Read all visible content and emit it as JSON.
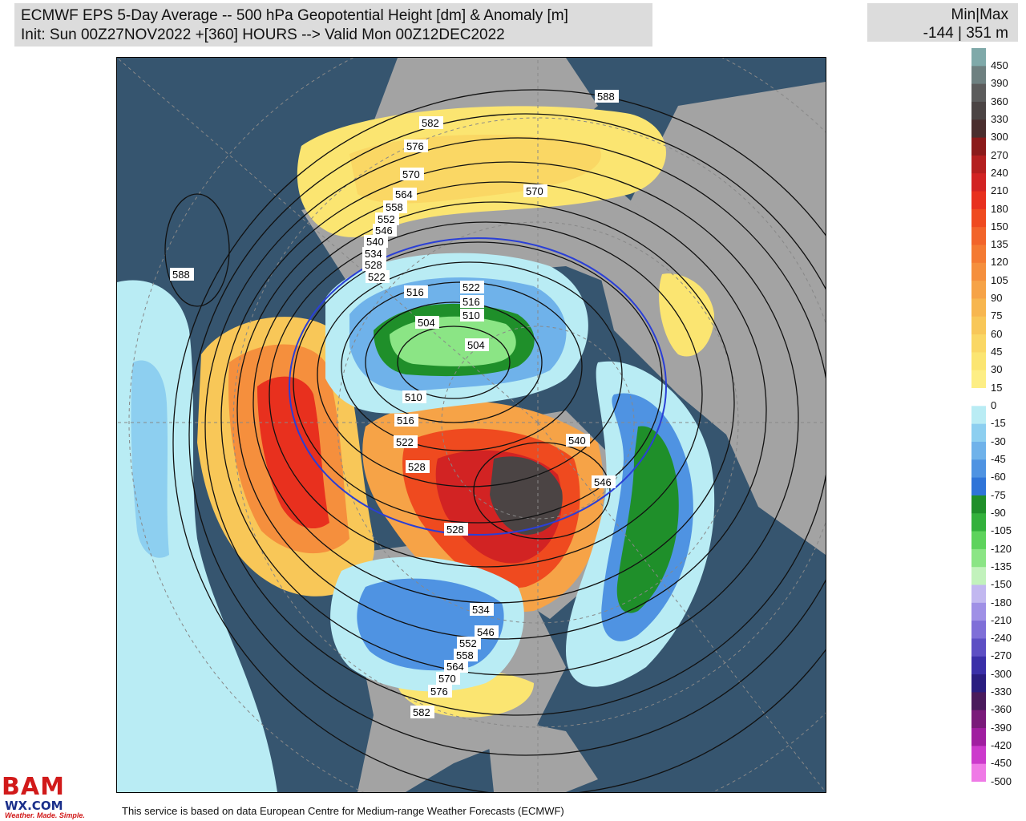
{
  "header": {
    "title_line1": "ECMWF EPS 5-Day Average -- 500 hPa Geopotential Height [dm] & Anomaly [m]",
    "title_line2": "Init: Sun 00Z27NOV2022 +[360] HOURS --> Valid Mon 00Z12DEC2022"
  },
  "minmax": {
    "label": "Min|Max",
    "value": "-144 | 351 m"
  },
  "legend": {
    "labels": [
      "450",
      "390",
      "360",
      "330",
      "300",
      "270",
      "240",
      "210",
      "180",
      "150",
      "135",
      "120",
      "105",
      "90",
      "75",
      "60",
      "45",
      "30",
      "15",
      "0",
      "-15",
      "-30",
      "-45",
      "-60",
      "-75",
      "-90",
      "-105",
      "-120",
      "-135",
      "-150",
      "-180",
      "-210",
      "-240",
      "-270",
      "-300",
      "-330",
      "-360",
      "-390",
      "-420",
      "-450",
      "-500"
    ],
    "colors": [
      "#7fa9a9",
      "#6e8080",
      "#5c5c5c",
      "#4b4444",
      "#4a2e2e",
      "#8b1a1a",
      "#b41f1f",
      "#d22323",
      "#e8301e",
      "#ef4a1f",
      "#f2642a",
      "#f47a32",
      "#f58f3d",
      "#f6a347",
      "#f7b64f",
      "#f8c758",
      "#fad764",
      "#fbe571",
      "#fdee85",
      "#ffffff",
      "#b9ecf4",
      "#8dcff0",
      "#6fb2ea",
      "#4f93e2",
      "#2f74d8",
      "#1f8f2a",
      "#33b13c",
      "#5dd35c",
      "#8be585",
      "#c2f2bc",
      "#c2b8f0",
      "#9f90e6",
      "#7f6fd8",
      "#5d4fc4",
      "#3a2fa8",
      "#2a1d80",
      "#4a1a5c",
      "#7a1a7a",
      "#a01ea0",
      "#cc3acc",
      "#ef7ae6"
    ]
  },
  "map": {
    "contour_labels": [
      "588",
      "582",
      "576",
      "570",
      "564",
      "558",
      "552",
      "546",
      "540",
      "534",
      "528",
      "522",
      "516",
      "522",
      "516",
      "510",
      "504",
      "504",
      "510",
      "516",
      "522",
      "528",
      "528",
      "540",
      "546",
      "534",
      "546",
      "552",
      "558",
      "564",
      "570",
      "576",
      "582",
      "588",
      "570"
    ]
  },
  "footer": {
    "text": "This service is based on data European Centre for Medium-range Weather Forecasts (ECMWF)"
  },
  "logo": {
    "line1": "BAM",
    "line2": "WX.COM",
    "line3": "Weather. Made. Simple."
  }
}
